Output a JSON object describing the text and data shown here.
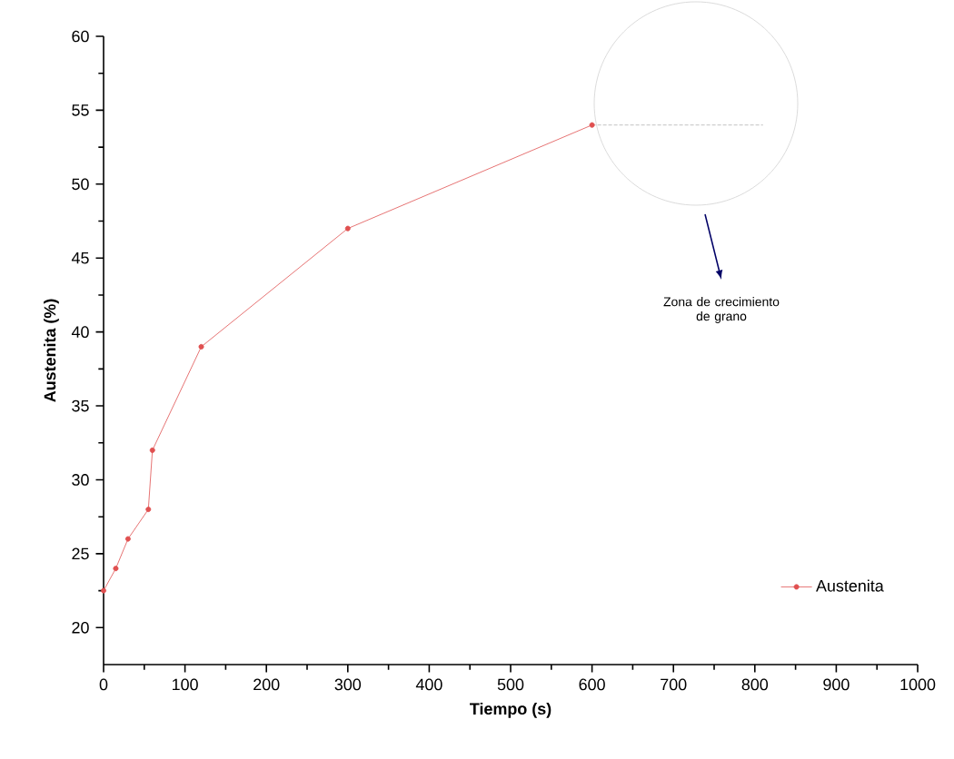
{
  "chart_data": {
    "type": "line",
    "xlabel": "Tiempo (s)",
    "ylabel": "Austenita (%)",
    "x": [
      0,
      15,
      30,
      55,
      60,
      120,
      300,
      600
    ],
    "series": [
      {
        "name": "Austenita",
        "color": "#e05050",
        "values": [
          22.5,
          24,
          26,
          28,
          32,
          39,
          47,
          54
        ]
      },
      {
        "type": "line",
        "x": [
          600,
          810
        ],
        "values": [
          54,
          54
        ],
        "color": "#b2b2b2",
        "line_style": "dotted",
        "marker": "none"
      }
    ],
    "xlim": [
      0,
      1000
    ],
    "ylim": [
      17.5,
      60
    ],
    "xticks": [
      0,
      100,
      200,
      300,
      400,
      500,
      600,
      700,
      800,
      900,
      1000
    ],
    "yticks": [
      20,
      25,
      30,
      35,
      40,
      45,
      50,
      55,
      60
    ],
    "annotations": [
      "Zona de crecimiento de grano"
    ],
    "marker": "circle",
    "line_style": "solid",
    "legend": "bottom right",
    "grid": false
  }
}
